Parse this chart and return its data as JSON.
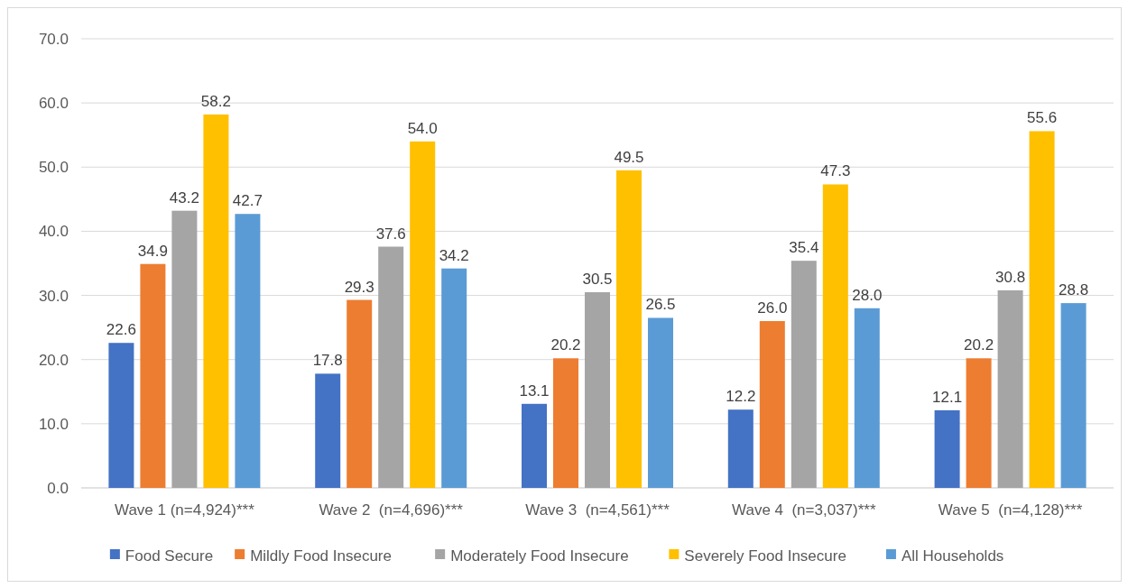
{
  "chart_data": {
    "type": "bar",
    "categories": [
      "Wave 1 (n=4,924)***",
      "Wave 2  (n=4,696)***",
      "Wave 3  (n=4,561)***",
      "Wave 4  (n=3,037)***",
      "Wave 5  (n=4,128)***"
    ],
    "series": [
      {
        "name": "Food Secure",
        "color": "#4472c4",
        "values": [
          22.6,
          17.8,
          13.1,
          12.2,
          12.1
        ],
        "value_labels": [
          "22.6",
          "17.8",
          "13.1",
          "12.2",
          "12.1"
        ]
      },
      {
        "name": "Mildly Food Insecure",
        "color": "#ed7d31",
        "values": [
          34.9,
          29.3,
          20.2,
          26.0,
          20.2
        ],
        "value_labels": [
          "34.9",
          "29.3",
          "20.2",
          "26.0",
          "20.2"
        ]
      },
      {
        "name": "Moderately Food Insecure",
        "color": "#a5a5a5",
        "values": [
          43.2,
          37.6,
          30.5,
          35.4,
          30.8
        ],
        "value_labels": [
          "43.2",
          "37.6",
          "30.5",
          "35.4",
          "30.8"
        ]
      },
      {
        "name": "Severely Food Insecure",
        "color": "#ffc000",
        "values": [
          58.2,
          54.0,
          49.5,
          47.3,
          55.6
        ],
        "value_labels": [
          "58.2",
          "54.0",
          "49.5",
          "47.3",
          "55.6"
        ]
      },
      {
        "name": "All Households",
        "color": "#5b9bd5",
        "values": [
          42.7,
          34.2,
          26.5,
          28.0,
          28.8
        ],
        "value_labels": [
          "42.7",
          "34.2",
          "26.5",
          "28.0",
          "28.8"
        ]
      }
    ],
    "ylim": [
      0,
      70
    ],
    "yticks": [
      {
        "value": 0,
        "label": "0.0"
      },
      {
        "value": 10,
        "label": "10.0"
      },
      {
        "value": 20,
        "label": "20.0"
      },
      {
        "value": 30,
        "label": "30.0"
      },
      {
        "value": 40,
        "label": "40.0"
      },
      {
        "value": 50,
        "label": "50.0"
      },
      {
        "value": 60,
        "label": "60.0"
      },
      {
        "value": 70,
        "label": "70.0"
      }
    ],
    "grid": "y",
    "legend": "bottom"
  }
}
